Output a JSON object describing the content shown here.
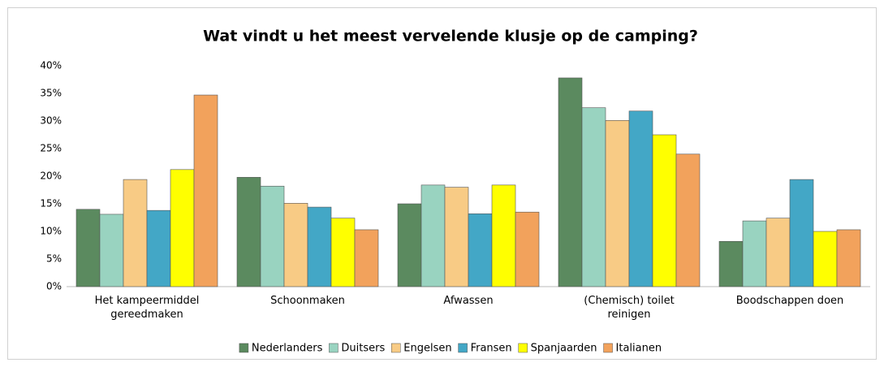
{
  "chart_data": {
    "type": "bar",
    "title": "Wat vindt u het meest vervelende klusje op de camping?",
    "categories": [
      "Het kampeermiddel gereedmaken",
      "Schoonmaken",
      "Afwassen",
      "(Chemisch) toilet reinigen",
      "Boodschappen doen"
    ],
    "series": [
      {
        "name": "Nederlanders",
        "color": "#5b8a5f",
        "values": [
          14.0,
          19.8,
          15.0,
          37.8,
          8.2
        ]
      },
      {
        "name": "Duitsers",
        "color": "#99d3c0",
        "values": [
          13.1,
          18.2,
          18.4,
          32.4,
          11.9
        ]
      },
      {
        "name": "Engelsen",
        "color": "#f8cb85",
        "values": [
          19.4,
          15.1,
          18.0,
          30.1,
          12.4
        ]
      },
      {
        "name": "Fransen",
        "color": "#43a7c6",
        "values": [
          13.8,
          14.4,
          13.2,
          31.8,
          19.4
        ]
      },
      {
        "name": "Spanjaarden",
        "color": "#ffff00",
        "values": [
          21.2,
          12.4,
          18.4,
          27.5,
          10.0
        ]
      },
      {
        "name": "Italianen",
        "color": "#f2a25c",
        "values": [
          34.7,
          10.3,
          13.5,
          24.0,
          10.3
        ]
      }
    ],
    "ylim": [
      0,
      40
    ],
    "yticks": [
      {
        "value": 0,
        "label": "0%"
      },
      {
        "value": 5,
        "label": "5%"
      },
      {
        "value": 10,
        "label": "10%"
      },
      {
        "value": 15,
        "label": "15%"
      },
      {
        "value": 20,
        "label": "20%"
      },
      {
        "value": 25,
        "label": "25%"
      },
      {
        "value": 30,
        "label": "30%"
      },
      {
        "value": 35,
        "label": "35%"
      },
      {
        "value": 40,
        "label": "40%"
      }
    ],
    "grid": false,
    "legend": "bottom"
  }
}
